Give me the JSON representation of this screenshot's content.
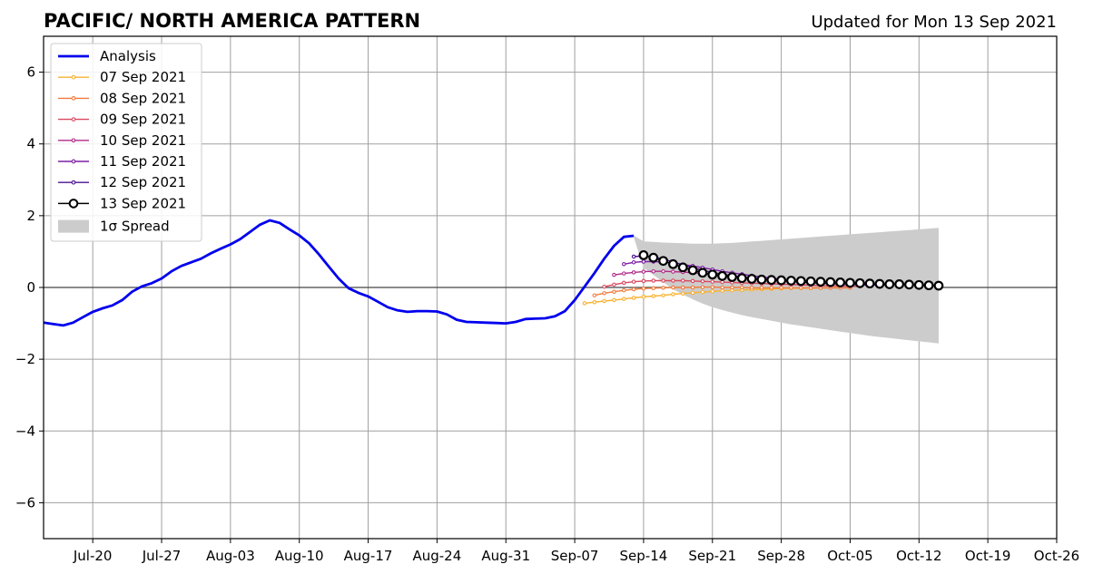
{
  "chart_data": {
    "type": "line",
    "title": "PACIFIC/ NORTH AMERICA PATTERN",
    "subtitle": "Updated for Mon 13 Sep 2021",
    "xlabel": "",
    "ylabel": "",
    "x_range": [
      "2021-07-15",
      "2021-10-26"
    ],
    "ylim": [
      -7,
      7
    ],
    "yticks": [
      -6,
      -4,
      -2,
      0,
      2,
      4,
      6
    ],
    "ytick_labels": [
      "−6",
      "−4",
      "−2",
      "0",
      "2",
      "4",
      "6"
    ],
    "xticks": [
      "2021-07-20",
      "2021-07-27",
      "2021-08-03",
      "2021-08-10",
      "2021-08-17",
      "2021-08-24",
      "2021-08-31",
      "2021-09-07",
      "2021-09-14",
      "2021-09-21",
      "2021-09-28",
      "2021-10-05",
      "2021-10-12",
      "2021-10-19",
      "2021-10-26"
    ],
    "xtick_labels": [
      "Jul-20",
      "Jul-27",
      "Aug-03",
      "Aug-10",
      "Aug-17",
      "Aug-24",
      "Aug-31",
      "Sep-07",
      "Sep-14",
      "Sep-21",
      "Sep-28",
      "Oct-05",
      "Oct-12",
      "Oct-19",
      "Oct-26"
    ],
    "grid": true,
    "legend_position": "top-left",
    "analysis": {
      "name": "Analysis",
      "color": "#0000ee",
      "start": "2021-07-15",
      "values": [
        -0.98,
        -1.02,
        -1.06,
        -0.98,
        -0.83,
        -0.68,
        -0.58,
        -0.5,
        -0.35,
        -0.12,
        0.03,
        0.12,
        0.25,
        0.45,
        0.6,
        0.7,
        0.8,
        0.95,
        1.08,
        1.2,
        1.35,
        1.55,
        1.75,
        1.87,
        1.8,
        1.62,
        1.45,
        1.23,
        0.92,
        0.58,
        0.25,
        -0.02,
        -0.15,
        -0.25,
        -0.4,
        -0.55,
        -0.64,
        -0.68,
        -0.66,
        -0.66,
        -0.67,
        -0.75,
        -0.9,
        -0.96,
        -0.97,
        -0.98,
        -0.99,
        -1.0,
        -0.96,
        -0.88,
        -0.87,
        -0.86,
        -0.8,
        -0.66,
        -0.35,
        0.02,
        0.4,
        0.8,
        1.16,
        1.41,
        1.44
      ]
    },
    "forecasts": [
      {
        "name": "07 Sep 2021",
        "color": "#f8b12f",
        "start": "2021-09-08",
        "values": [
          -0.44,
          -0.41,
          -0.38,
          -0.35,
          -0.32,
          -0.29,
          -0.26,
          -0.24,
          -0.22,
          -0.19,
          -0.17,
          -0.15,
          -0.13,
          -0.11,
          -0.09,
          -0.08,
          -0.07,
          -0.06,
          -0.05,
          -0.04,
          -0.03,
          -0.02,
          -0.02,
          -0.02,
          -0.01,
          -0.01,
          0.0
        ]
      },
      {
        "name": "08 Sep 2021",
        "color": "#f07b3c",
        "start": "2021-09-09",
        "values": [
          -0.22,
          -0.16,
          -0.12,
          -0.08,
          -0.05,
          -0.03,
          -0.02,
          -0.01,
          0.0,
          0.0,
          0.0,
          0.01,
          0.01,
          0.0,
          0.0,
          0.0,
          -0.01,
          -0.01,
          -0.01,
          -0.01,
          -0.01,
          -0.01,
          -0.01,
          -0.01,
          -0.01,
          -0.01,
          -0.01
        ]
      },
      {
        "name": "09 Sep 2021",
        "color": "#d9485f",
        "start": "2021-09-10",
        "values": [
          0.02,
          0.08,
          0.13,
          0.16,
          0.18,
          0.19,
          0.19,
          0.19,
          0.19,
          0.18,
          0.17,
          0.16,
          0.15,
          0.14,
          0.13,
          0.12,
          0.11,
          0.1,
          0.09,
          0.08,
          0.07,
          0.06,
          0.05,
          0.04,
          0.04,
          0.03,
          0.03
        ]
      },
      {
        "name": "10 Sep 2021",
        "color": "#b02a8a",
        "start": "2021-09-11",
        "values": [
          0.35,
          0.39,
          0.42,
          0.44,
          0.45,
          0.45,
          0.44,
          0.43,
          0.41,
          0.39,
          0.37,
          0.34,
          0.31,
          0.29,
          0.26,
          0.24,
          0.22,
          0.19,
          0.17,
          0.15,
          0.13,
          0.12,
          0.1,
          0.09,
          0.08,
          0.07,
          0.06
        ]
      },
      {
        "name": "11 Sep 2021",
        "color": "#7d1fa6",
        "start": "2021-09-12",
        "values": [
          0.65,
          0.7,
          0.72,
          0.72,
          0.71,
          0.68,
          0.64,
          0.6,
          0.55,
          0.5,
          0.45,
          0.41,
          0.37,
          0.33,
          0.29,
          0.26,
          0.23,
          0.2,
          0.18,
          0.16,
          0.14,
          0.12,
          0.11,
          0.1,
          0.09,
          0.08,
          0.07
        ]
      },
      {
        "name": "12 Sep 2021",
        "color": "#4a1090",
        "start": "2021-09-13",
        "values": [
          0.86,
          0.88,
          0.85,
          0.79,
          0.71,
          0.63,
          0.55,
          0.48,
          0.42,
          0.37,
          0.33,
          0.29,
          0.26,
          0.23,
          0.21,
          0.19,
          0.17,
          0.15,
          0.13,
          0.12,
          0.11,
          0.1,
          0.09,
          0.08,
          0.07,
          0.07,
          0.06
        ]
      }
    ],
    "current": {
      "name": "13 Sep 2021",
      "color": "#000000",
      "start": "2021-09-14",
      "values": [
        0.9,
        0.83,
        0.74,
        0.65,
        0.56,
        0.48,
        0.41,
        0.36,
        0.32,
        0.29,
        0.26,
        0.24,
        0.22,
        0.21,
        0.2,
        0.19,
        0.18,
        0.17,
        0.16,
        0.15,
        0.14,
        0.13,
        0.12,
        0.11,
        0.1,
        0.09,
        0.09,
        0.08,
        0.07,
        0.06,
        0.05
      ]
    },
    "spread": {
      "name": "1σ Spread",
      "color": "#cccccc",
      "start": "2021-09-13",
      "upper": [
        1.45,
        1.28,
        1.27,
        1.25,
        1.24,
        1.23,
        1.22,
        1.22,
        1.22,
        1.23,
        1.24,
        1.26,
        1.28,
        1.3,
        1.32,
        1.34,
        1.36,
        1.38,
        1.4,
        1.42,
        1.44,
        1.46,
        1.48,
        1.5,
        1.52,
        1.54,
        1.56,
        1.58,
        1.6,
        1.62,
        1.64,
        1.66
      ],
      "lower": [
        1.4,
        0.55,
        0.35,
        0.15,
        -0.05,
        -0.2,
        -0.33,
        -0.45,
        -0.55,
        -0.63,
        -0.7,
        -0.77,
        -0.83,
        -0.88,
        -0.93,
        -0.98,
        -1.03,
        -1.07,
        -1.11,
        -1.15,
        -1.19,
        -1.23,
        -1.27,
        -1.31,
        -1.35,
        -1.38,
        -1.41,
        -1.44,
        -1.47,
        -1.5,
        -1.53,
        -1.56
      ]
    },
    "legend": [
      "Analysis",
      "07 Sep 2021",
      "08 Sep 2021",
      "09 Sep 2021",
      "10 Sep 2021",
      "11 Sep 2021",
      "12 Sep 2021",
      "13 Sep 2021",
      "1σ Spread"
    ]
  }
}
